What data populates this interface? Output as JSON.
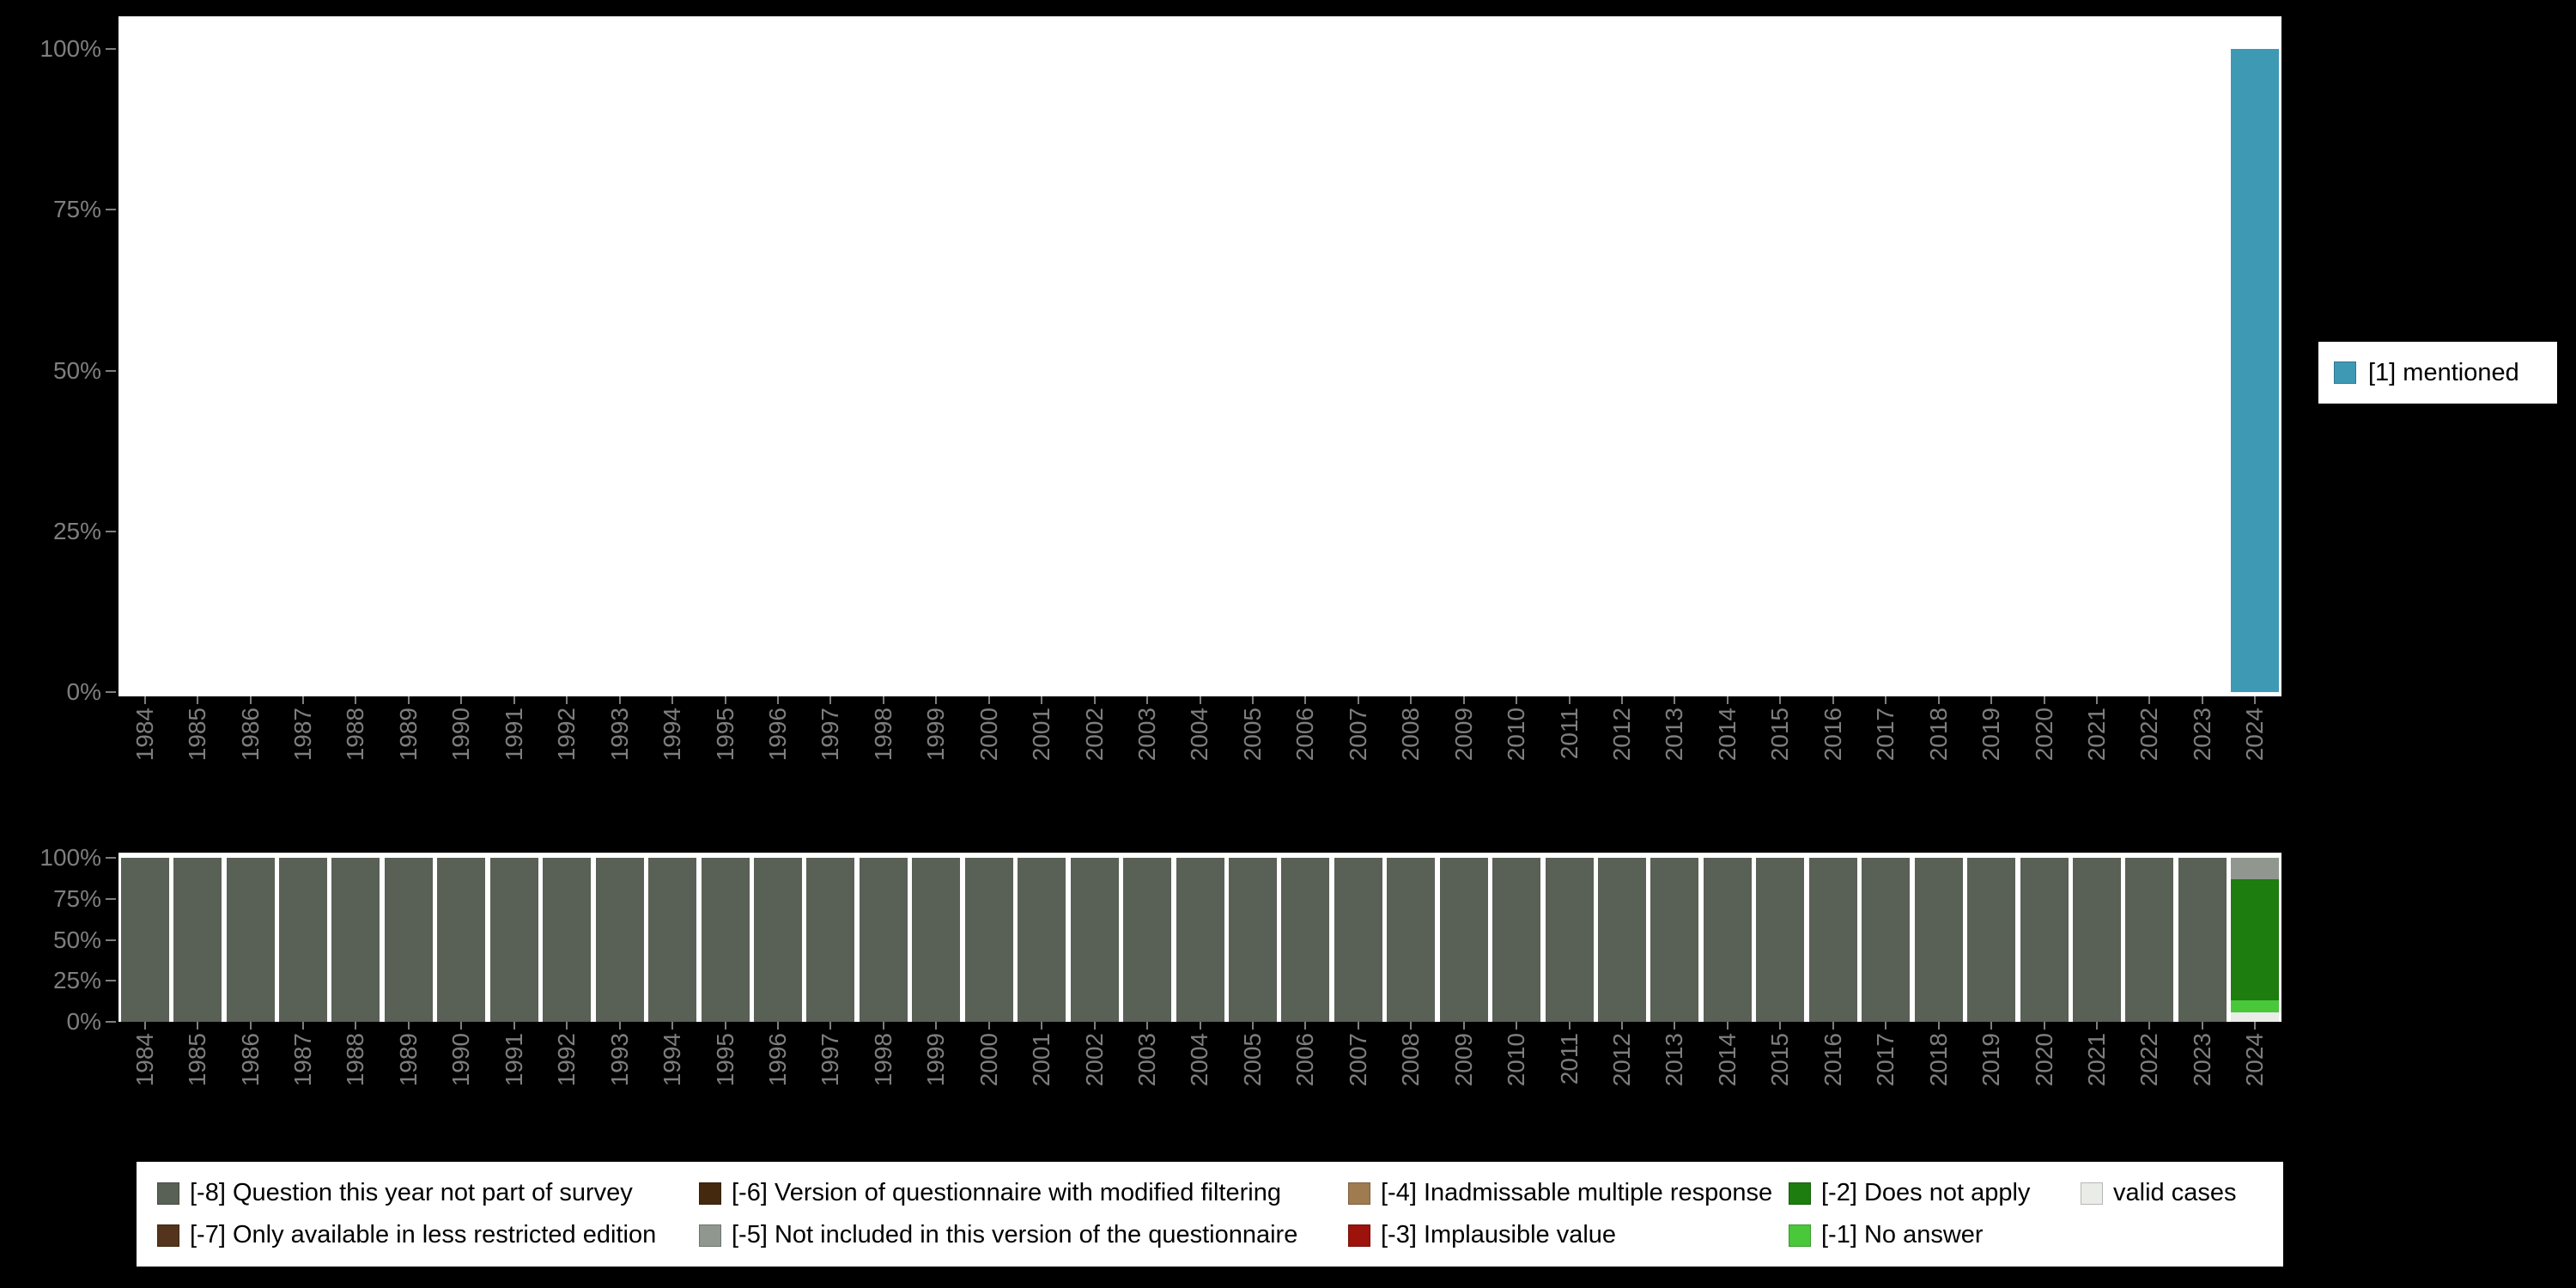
{
  "palette": {
    "page_bg": "#000000",
    "plot_bg": "#ffffff",
    "axis_text": "#7e7e7e",
    "legend_bg": "#ffffff",
    "legend_text": "#000000"
  },
  "top_chart_legend": {
    "label": "[1] mentioned",
    "color": "#3e99b4"
  },
  "bottom_legend": {
    "items": [
      {
        "label": "[-8] Question this year not part of survey",
        "color": "#596056"
      },
      {
        "label": "[-6] Version of questionnaire with modified filtering",
        "color": "#45290e"
      },
      {
        "label": "[-4] Inadmissable multiple response",
        "color": "#a07b50"
      },
      {
        "label": "[-2] Does not apply",
        "color": "#1d7d0e"
      },
      {
        "label": "valid cases",
        "color": "#e9ece7"
      },
      {
        "label": "[-7] Only available in less restricted edition",
        "color": "#54341c"
      },
      {
        "label": "[-5] Not included in this version of the questionnaire",
        "color": "#8f978f"
      },
      {
        "label": "[-3] Implausible value",
        "color": "#9d120b"
      },
      {
        "label": "[-1] No answer",
        "color": "#49c83a"
      }
    ]
  },
  "chart_data": [
    {
      "type": "bar",
      "name": "mentioned-by-year",
      "title": "",
      "xlabel": "",
      "ylabel": "",
      "ylim": [
        0,
        100
      ],
      "grid": false,
      "legend_position": "right",
      "x_label_rotation": 90,
      "y_ticks": [
        "100%",
        "75%",
        "50%",
        "25%",
        "0%"
      ],
      "categories": [
        "1984",
        "1985",
        "1986",
        "1987",
        "1988",
        "1989",
        "1990",
        "1991",
        "1992",
        "1993",
        "1994",
        "1995",
        "1996",
        "1997",
        "1998",
        "1999",
        "2000",
        "2001",
        "2002",
        "2003",
        "2004",
        "2005",
        "2006",
        "2007",
        "2008",
        "2009",
        "2010",
        "2011",
        "2012",
        "2013",
        "2014",
        "2015",
        "2016",
        "2017",
        "2018",
        "2019",
        "2020",
        "2021",
        "2022",
        "2023",
        "2024"
      ],
      "series": [
        {
          "name": "[1] mentioned",
          "color": "#3e99b4",
          "values": [
            0,
            0,
            0,
            0,
            0,
            0,
            0,
            0,
            0,
            0,
            0,
            0,
            0,
            0,
            0,
            0,
            0,
            0,
            0,
            0,
            0,
            0,
            0,
            0,
            0,
            0,
            0,
            0,
            0,
            0,
            0,
            0,
            0,
            0,
            0,
            0,
            0,
            0,
            0,
            0,
            100
          ]
        }
      ]
    },
    {
      "type": "bar",
      "stacked": true,
      "name": "missing-values-by-year",
      "title": "",
      "xlabel": "",
      "ylabel": "",
      "ylim": [
        0,
        100
      ],
      "grid": false,
      "legend_position": "bottom",
      "x_label_rotation": 90,
      "y_ticks": [
        "100%",
        "75%",
        "50%",
        "25%",
        "0%"
      ],
      "categories": [
        "1984",
        "1985",
        "1986",
        "1987",
        "1988",
        "1989",
        "1990",
        "1991",
        "1992",
        "1993",
        "1994",
        "1995",
        "1996",
        "1997",
        "1998",
        "1999",
        "2000",
        "2001",
        "2002",
        "2003",
        "2004",
        "2005",
        "2006",
        "2007",
        "2008",
        "2009",
        "2010",
        "2011",
        "2012",
        "2013",
        "2014",
        "2015",
        "2016",
        "2017",
        "2018",
        "2019",
        "2020",
        "2021",
        "2022",
        "2023",
        "2024"
      ],
      "stack_order": "bottom-to-top",
      "series": [
        {
          "name": "valid cases",
          "color": "#e9ece7",
          "values": [
            0,
            0,
            0,
            0,
            0,
            0,
            0,
            0,
            0,
            0,
            0,
            0,
            0,
            0,
            0,
            0,
            0,
            0,
            0,
            0,
            0,
            0,
            0,
            0,
            0,
            0,
            0,
            0,
            0,
            0,
            0,
            0,
            0,
            0,
            0,
            0,
            0,
            0,
            0,
            0,
            6
          ]
        },
        {
          "name": "[-1] No answer",
          "color": "#49c83a",
          "values": [
            0,
            0,
            0,
            0,
            0,
            0,
            0,
            0,
            0,
            0,
            0,
            0,
            0,
            0,
            0,
            0,
            0,
            0,
            0,
            0,
            0,
            0,
            0,
            0,
            0,
            0,
            0,
            0,
            0,
            0,
            0,
            0,
            0,
            0,
            0,
            0,
            0,
            0,
            0,
            0,
            7
          ]
        },
        {
          "name": "[-2] Does not apply",
          "color": "#1d7d0e",
          "values": [
            0,
            0,
            0,
            0,
            0,
            0,
            0,
            0,
            0,
            0,
            0,
            0,
            0,
            0,
            0,
            0,
            0,
            0,
            0,
            0,
            0,
            0,
            0,
            0,
            0,
            0,
            0,
            0,
            0,
            0,
            0,
            0,
            0,
            0,
            0,
            0,
            0,
            0,
            0,
            0,
            74
          ]
        },
        {
          "name": "[-5] Not included in this version of the questionnaire",
          "color": "#8f978f",
          "values": [
            0,
            0,
            0,
            0,
            0,
            0,
            0,
            0,
            0,
            0,
            0,
            0,
            0,
            0,
            0,
            0,
            0,
            0,
            0,
            0,
            0,
            0,
            0,
            0,
            0,
            0,
            0,
            0,
            0,
            0,
            0,
            0,
            0,
            0,
            0,
            0,
            0,
            0,
            0,
            0,
            13
          ]
        },
        {
          "name": "[-8] Question this year not part of survey",
          "color": "#596056",
          "values": [
            100,
            100,
            100,
            100,
            100,
            100,
            100,
            100,
            100,
            100,
            100,
            100,
            100,
            100,
            100,
            100,
            100,
            100,
            100,
            100,
            100,
            100,
            100,
            100,
            100,
            100,
            100,
            100,
            100,
            100,
            100,
            100,
            100,
            100,
            100,
            100,
            100,
            100,
            100,
            100,
            0
          ]
        }
      ]
    }
  ]
}
